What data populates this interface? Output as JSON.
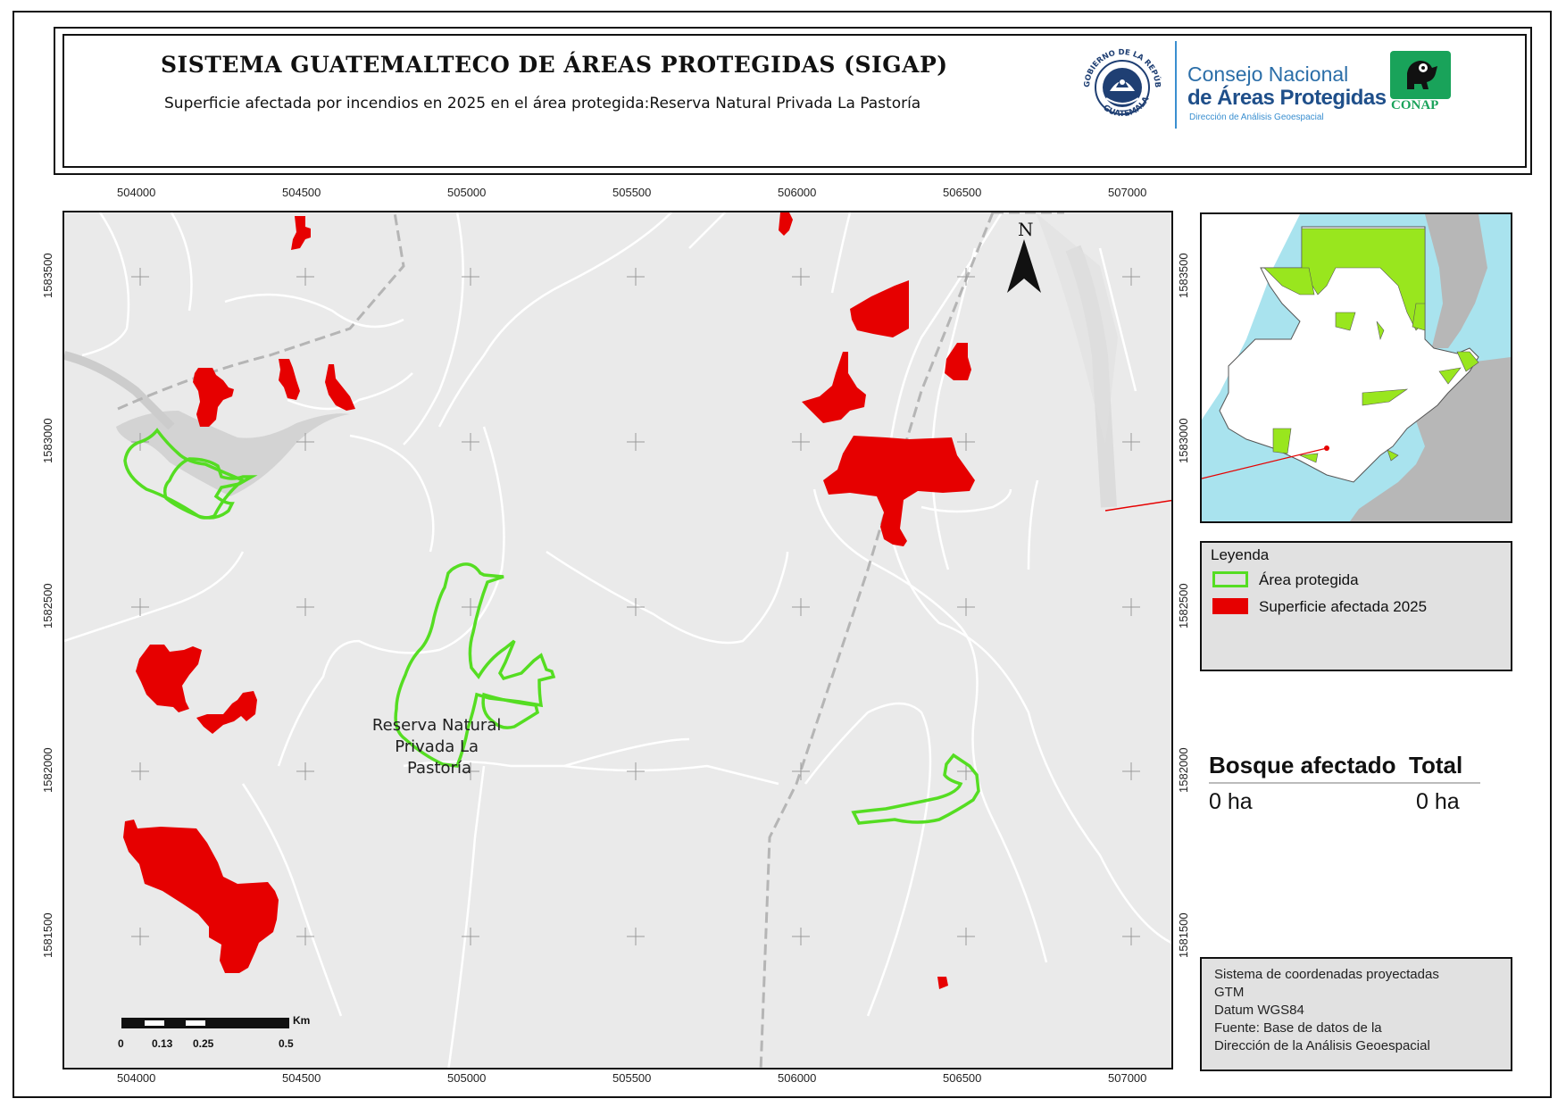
{
  "header": {
    "title": "SISTEMA GUATEMALTECO DE ÁREAS PROTEGIDAS  (SIGAP)",
    "subtitle": "Superficie afectada por incendios en 2025 en el área protegida:Reserva Natural Privada La Pastoría",
    "seal_text_top": "GOBIERNO DE LA REPÚBLICA",
    "seal_text_bottom": "GUATEMALA",
    "logo_line1": "Consejo Nacional",
    "logo_line2": "de Áreas Protegidas",
    "logo_line3": "Dirección de Análisis Geoespacial",
    "conap": "CONAP"
  },
  "map": {
    "x_ticks": [
      "504000",
      "504500",
      "505000",
      "505500",
      "506000",
      "506500",
      "507000"
    ],
    "y_ticks": [
      "1583500",
      "1583000",
      "1582500",
      "1582000",
      "1581500"
    ],
    "north_label": "N",
    "area_label": [
      "Reserva Natural",
      "Privada La",
      "Pastoría"
    ],
    "colors": {
      "background": "#eaeaea",
      "roads": "#ffffff",
      "protected_area": "#55dd22",
      "burned": "#e60000",
      "river": "#d4d4d4"
    }
  },
  "scale_bar": {
    "unit": "Km",
    "labels": [
      "0",
      "0.13",
      "0.25",
      "0.5"
    ]
  },
  "legend": {
    "title": "Leyenda",
    "items": [
      {
        "label": "Área protegida",
        "color": "#55dd22",
        "style": "outline"
      },
      {
        "label": "Superficie afectada 2025",
        "color": "#e60000",
        "style": "fill"
      }
    ]
  },
  "stats": {
    "col1_header": "Bosque afectado",
    "col2_header": "Total",
    "col1_value": "0 ha",
    "col2_value": "0 ha"
  },
  "info": {
    "lines": [
      "Sistema de coordenadas proyectadas",
      "GTM",
      "Datum WGS84",
      "Fuente: Base de datos de la",
      "Dirección de la Análisis Geoespacial"
    ]
  }
}
